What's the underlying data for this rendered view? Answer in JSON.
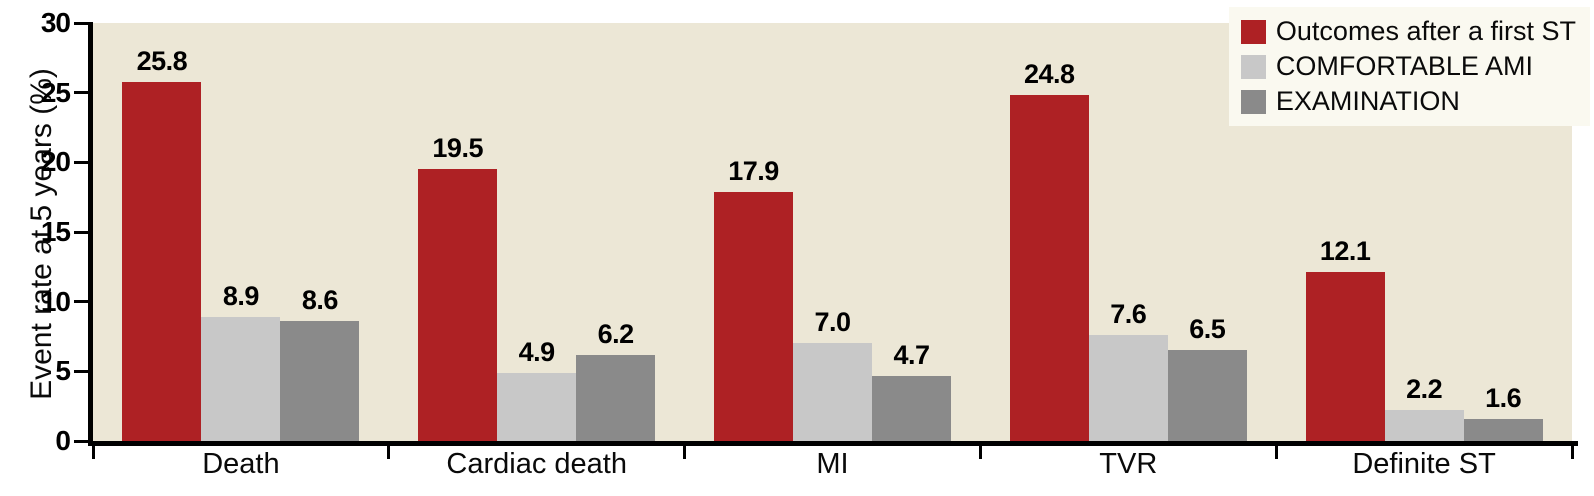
{
  "chart_data": {
    "type": "bar",
    "categories": [
      "Death",
      "Cardiac death",
      "MI",
      "TVR",
      "Definite ST"
    ],
    "series": [
      {
        "name": "Outcomes after a first ST",
        "color": "#ae2124",
        "values": [
          25.8,
          19.5,
          17.9,
          24.8,
          12.1
        ],
        "labels": [
          "25.8",
          "19.5",
          "17.9",
          "24.8",
          "12.1"
        ]
      },
      {
        "name": "COMFORTABLE AMI",
        "color": "#c8c8c8",
        "values": [
          8.9,
          4.9,
          7.0,
          7.6,
          2.2
        ],
        "labels": [
          "8.9",
          "4.9",
          "7.0",
          "7.6",
          "2.2"
        ]
      },
      {
        "name": "EXAMINATION",
        "color": "#8a8a8a",
        "values": [
          8.6,
          6.2,
          4.7,
          6.5,
          1.6
        ],
        "labels": [
          "8.6",
          "6.2",
          "4.7",
          "6.5",
          "1.6"
        ]
      }
    ],
    "ylabel": "Event rate at 5 years (%)",
    "ylim": [
      0,
      30
    ],
    "yticks": [
      0,
      5,
      10,
      15,
      20,
      25,
      30
    ],
    "legend_position": "top-right",
    "grid": false,
    "colors": {
      "plot_background": "#ece7d6",
      "legend_background": "#faf9f0",
      "axis": "#000000",
      "text": "#000000"
    }
  }
}
